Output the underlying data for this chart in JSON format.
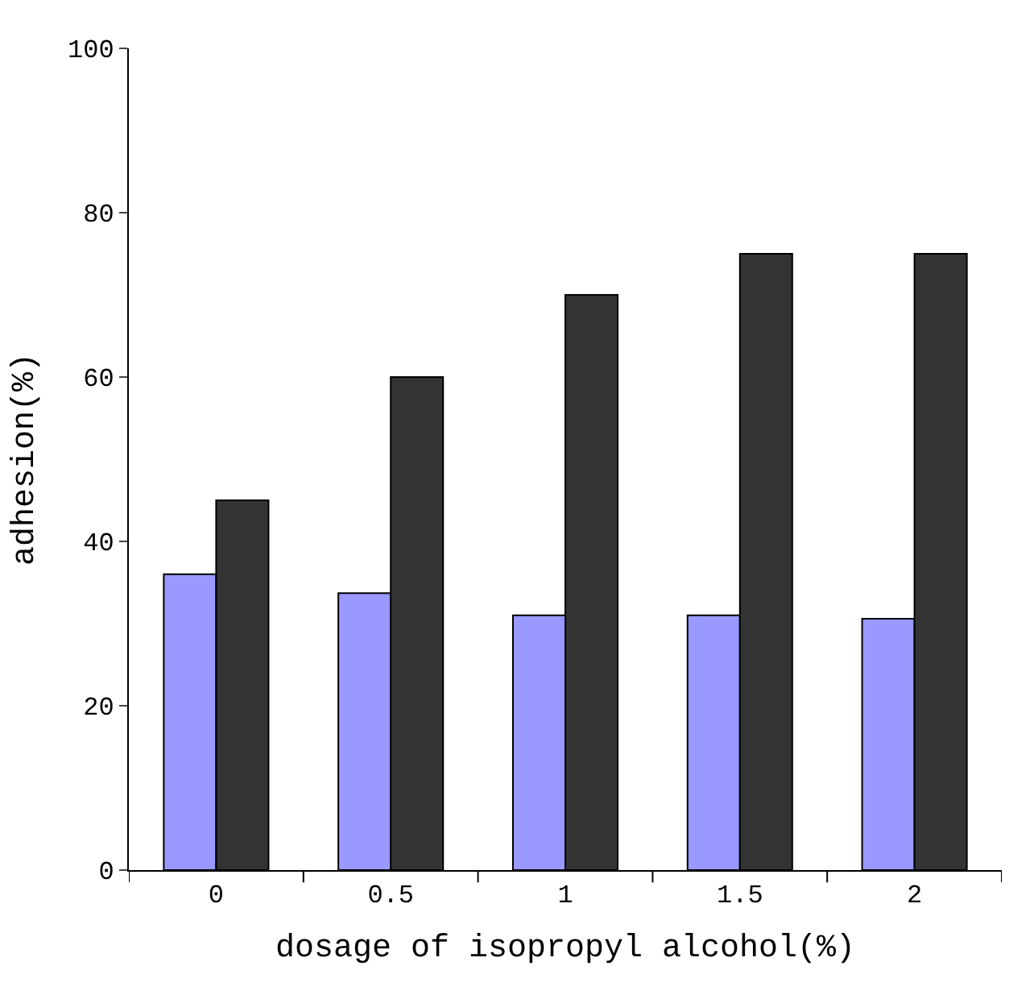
{
  "chart_data": {
    "type": "bar",
    "xlabel": "dosage of isopropyl alcohol(%)",
    "ylabel": "adhesion(%)",
    "categories": [
      "0",
      "0.5",
      "1",
      "1.5",
      "2"
    ],
    "series": [
      {
        "color": "#9999ff",
        "values": [
          36,
          33.7,
          31,
          31,
          30.6
        ]
      },
      {
        "color": "#333333",
        "values": [
          45,
          60,
          70,
          75,
          75
        ]
      }
    ],
    "ylim": [
      0,
      100
    ],
    "yticks": [
      0,
      20,
      40,
      60,
      80,
      100
    ]
  }
}
